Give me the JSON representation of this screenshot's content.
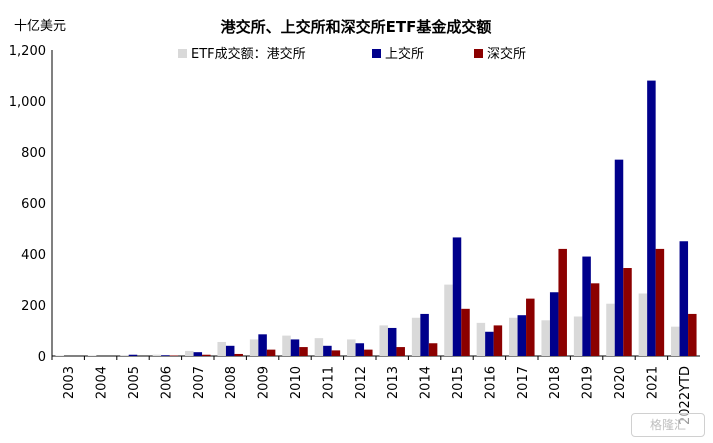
{
  "chart_data": {
    "type": "bar",
    "title": "港交所、上交所和深交所ETF基金成交额",
    "ylabel": "十亿美元",
    "xlabel": "",
    "ylim": [
      0,
      1200
    ],
    "yticks": [
      "0",
      "200",
      "400",
      "600",
      "800",
      "1,000",
      "1,200"
    ],
    "ytick_values": [
      0,
      200,
      400,
      600,
      800,
      1000,
      1200
    ],
    "categories": [
      "2003",
      "2004",
      "2005",
      "2006",
      "2007",
      "2008",
      "2009",
      "2010",
      "2011",
      "2012",
      "2013",
      "2014",
      "2015",
      "2016",
      "2017",
      "2018",
      "2019",
      "2020",
      "2021",
      "2022YTD"
    ],
    "series": [
      {
        "name": "ETF成交额：港交所",
        "color": "#d9d9d9",
        "values": [
          2,
          2,
          3,
          5,
          20,
          55,
          65,
          80,
          70,
          65,
          120,
          150,
          280,
          130,
          150,
          140,
          155,
          205,
          245,
          115
        ]
      },
      {
        "name": "上交所",
        "color": "#00008b",
        "values": [
          0,
          0,
          5,
          3,
          15,
          40,
          85,
          65,
          40,
          50,
          110,
          165,
          465,
          95,
          160,
          250,
          390,
          770,
          1080,
          450
        ]
      },
      {
        "name": "深交所",
        "color": "#8b0000",
        "values": [
          0,
          0,
          0,
          2,
          5,
          8,
          25,
          35,
          22,
          25,
          35,
          50,
          185,
          120,
          225,
          420,
          285,
          345,
          420,
          165
        ]
      }
    ],
    "grid": false,
    "legend": "top"
  },
  "watermark_text": "格隆汇"
}
